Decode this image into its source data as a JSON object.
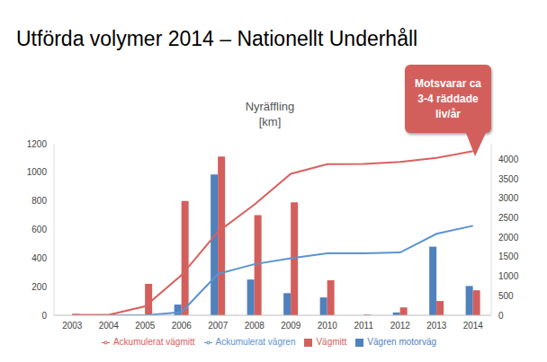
{
  "slide_title": "Utförda volymer 2014 – Nationellt Underhåll",
  "chart_data": {
    "type": "bar",
    "title": "Nyräffling",
    "subtitle": "[km]",
    "annotations": [
      "Motsvarar ca 3-4 räddade liv/år"
    ],
    "categories": [
      "2003",
      "2004",
      "2005",
      "2006",
      "2007",
      "2008",
      "2009",
      "2010",
      "2011",
      "2012",
      "2013",
      "2014"
    ],
    "series": [
      {
        "name": "Vägren motorväg",
        "type": "bar",
        "color": "#4F81BD",
        "values": [
          0,
          0,
          0,
          75,
          985,
          250,
          155,
          125,
          0,
          20,
          480,
          205
        ]
      },
      {
        "name": "Vägmitt",
        "type": "bar",
        "color": "#D35F5C",
        "values": [
          10,
          0,
          220,
          800,
          1110,
          700,
          790,
          245,
          5,
          55,
          100,
          175
        ]
      },
      {
        "name": "Ackumulerat vägren",
        "type": "line",
        "axis": "y2",
        "color": "#5B93CF",
        "values": [
          0,
          0,
          0,
          80,
          1060,
          1310,
          1465,
          1590,
          1590,
          1610,
          2090,
          2295
        ]
      },
      {
        "name": "Ackumulerat vägmitt",
        "type": "line",
        "axis": "y2",
        "color": "#D9605E",
        "values": [
          10,
          10,
          230,
          1030,
          2140,
          2840,
          3630,
          3875,
          3880,
          3935,
          4035,
          4210
        ]
      }
    ],
    "ylim": [
      0,
      1200
    ],
    "yticks": [
      0,
      200,
      400,
      600,
      800,
      1000,
      1200
    ],
    "y2lim": [
      0,
      4400
    ],
    "y2ticks": [
      0,
      500,
      1000,
      1500,
      2000,
      2500,
      3000,
      3500,
      4000
    ],
    "grid": false,
    "legend": "bottom"
  }
}
